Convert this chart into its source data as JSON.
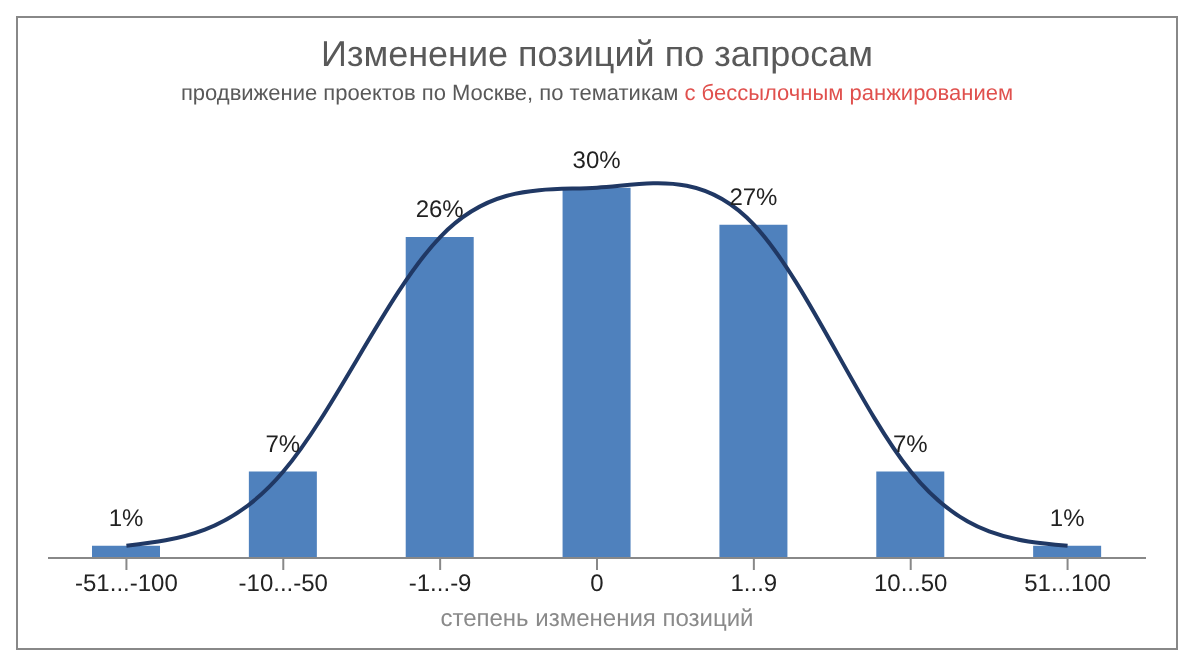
{
  "chart_data": {
    "type": "bar",
    "title": "Изменение позиций по запросам",
    "subtitle": "продвижение проектов по Москве, по тематикам",
    "annotations": [
      "с бессылочным ранжированием"
    ],
    "xlabel": "степень изменения позиций",
    "categories": [
      "-51...-100",
      "-10...-50",
      "-1...-9",
      "0",
      "1...9",
      "10...50",
      "51...100"
    ],
    "series": [
      {
        "color": "#4f81bd",
        "values": [
          1,
          7,
          26,
          30,
          27,
          7,
          1
        ],
        "value_labels": [
          "1%",
          "7%",
          "26%",
          "30%",
          "27%",
          "7%",
          "1%"
        ]
      },
      {
        "type": "line",
        "color": "#203864",
        "values": [
          1,
          7,
          26,
          30,
          27,
          7,
          1
        ]
      }
    ],
    "tick_labels": "x",
    "marker": "none"
  }
}
